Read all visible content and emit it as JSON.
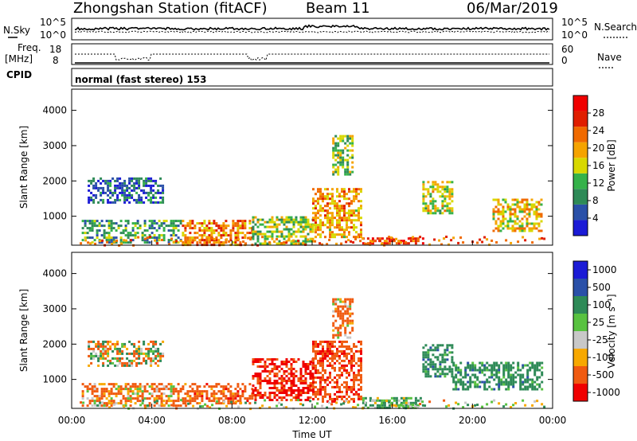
{
  "header": {
    "station": "Zhongshan Station (fitACF)",
    "beam": "Beam 11",
    "date": "06/Mar/2019"
  },
  "strip": {
    "nsky_label": "N.Sky",
    "nsky_ticks": [
      "10^5",
      "10^0"
    ],
    "nsearch_label": "N.Search",
    "nsearch_ticks": [
      "10^5",
      "10^0"
    ],
    "freq_label_1": "Freq.",
    "freq_label_2": "[MHz]",
    "freq_ticks": [
      "18",
      "8"
    ],
    "nave_label": "Nave",
    "nave_ticks": [
      "60",
      "0"
    ],
    "cpid_label": "CPID",
    "cpid_text": "normal (fast stereo) 153"
  },
  "colors": {
    "power_scale": [
      "#1b1bd6",
      "#2a50a8",
      "#2e8a57",
      "#35b24a",
      "#d8d800",
      "#f5a300",
      "#f06a00",
      "#e01e00",
      "#f00000"
    ],
    "velocity_scale": [
      "#f00000",
      "#f05a10",
      "#f7a800",
      "#c8c8c8",
      "#58c240",
      "#2e8a57",
      "#2a50a8",
      "#1b1bd6"
    ]
  },
  "power_colorbar": {
    "label": "Power [dB]",
    "ticks": [
      "4",
      "8",
      "12",
      "16",
      "20",
      "24",
      "28"
    ]
  },
  "velocity_colorbar": {
    "label": "Velocity  [m s⁻¹]",
    "ticks": [
      "1000",
      "500",
      "100",
      "25",
      "-25",
      "-100",
      "-500",
      "-1000"
    ]
  },
  "chart_data": [
    {
      "type": "heatmap",
      "title": "",
      "xlabel": "Time UT",
      "ylabel": "Slant Range [km]",
      "xlim": [
        "00:00",
        "24:00"
      ],
      "ylim": [
        180,
        4600
      ],
      "x_ticks": [
        "00:00",
        "04:00",
        "08:00",
        "12:00",
        "16:00",
        "20:00",
        "00:00"
      ],
      "y_ticks": [
        1000,
        2000,
        3000,
        4000
      ],
      "colorbar": "Power [dB]",
      "colorbar_range": [
        0,
        32
      ],
      "regions": [
        {
          "t": [
            0.5,
            5.5
          ],
          "r": [
            250,
            900
          ],
          "value": 10
        },
        {
          "t": [
            5.5,
            9.0
          ],
          "r": [
            200,
            900
          ],
          "value": 22
        },
        {
          "t": [
            0.8,
            4.5
          ],
          "r": [
            1400,
            2100
          ],
          "value": 6
        },
        {
          "t": [
            9.0,
            12.0
          ],
          "r": [
            250,
            1000
          ],
          "value": 14
        },
        {
          "t": [
            12.0,
            14.5
          ],
          "r": [
            400,
            1800
          ],
          "value": 20
        },
        {
          "t": [
            13.0,
            14.0
          ],
          "r": [
            2200,
            3300
          ],
          "value": 14
        },
        {
          "t": [
            14.5,
            17.5
          ],
          "r": [
            200,
            400
          ],
          "value": 26
        },
        {
          "t": [
            17.5,
            19.0
          ],
          "r": [
            1100,
            2000
          ],
          "value": 16
        },
        {
          "t": [
            21.0,
            23.5
          ],
          "r": [
            600,
            1500
          ],
          "value": 18
        }
      ]
    },
    {
      "type": "heatmap",
      "title": "",
      "xlabel": "Time UT",
      "ylabel": "Slant Range [km]",
      "xlim": [
        "00:00",
        "24:00"
      ],
      "ylim": [
        180,
        4600
      ],
      "x_ticks": [
        "00:00",
        "04:00",
        "08:00",
        "12:00",
        "16:00",
        "20:00",
        "00:00"
      ],
      "y_ticks": [
        1000,
        2000,
        3000,
        4000
      ],
      "colorbar": "Velocity [m s⁻¹]",
      "colorbar_levels": [
        1000,
        500,
        100,
        25,
        -25,
        -100,
        -500,
        -1000
      ],
      "regions": [
        {
          "t": [
            0.8,
            4.5
          ],
          "r": [
            1400,
            2100
          ],
          "value": 0
        },
        {
          "t": [
            0.5,
            5.5
          ],
          "r": [
            250,
            900
          ],
          "value": -150
        },
        {
          "t": [
            5.5,
            9.0
          ],
          "r": [
            300,
            900
          ],
          "value": -300
        },
        {
          "t": [
            9.0,
            12.0
          ],
          "r": [
            400,
            1600
          ],
          "value": -600
        },
        {
          "t": [
            12.0,
            14.5
          ],
          "r": [
            400,
            2100
          ],
          "value": -400
        },
        {
          "t": [
            13.0,
            14.0
          ],
          "r": [
            2200,
            3300
          ],
          "value": -200
        },
        {
          "t": [
            14.5,
            17.5
          ],
          "r": [
            200,
            500
          ],
          "value": 150
        },
        {
          "t": [
            17.5,
            19.0
          ],
          "r": [
            1100,
            2000
          ],
          "value": 300
        },
        {
          "t": [
            19.0,
            23.5
          ],
          "r": [
            700,
            1500
          ],
          "value": 300
        }
      ]
    }
  ]
}
